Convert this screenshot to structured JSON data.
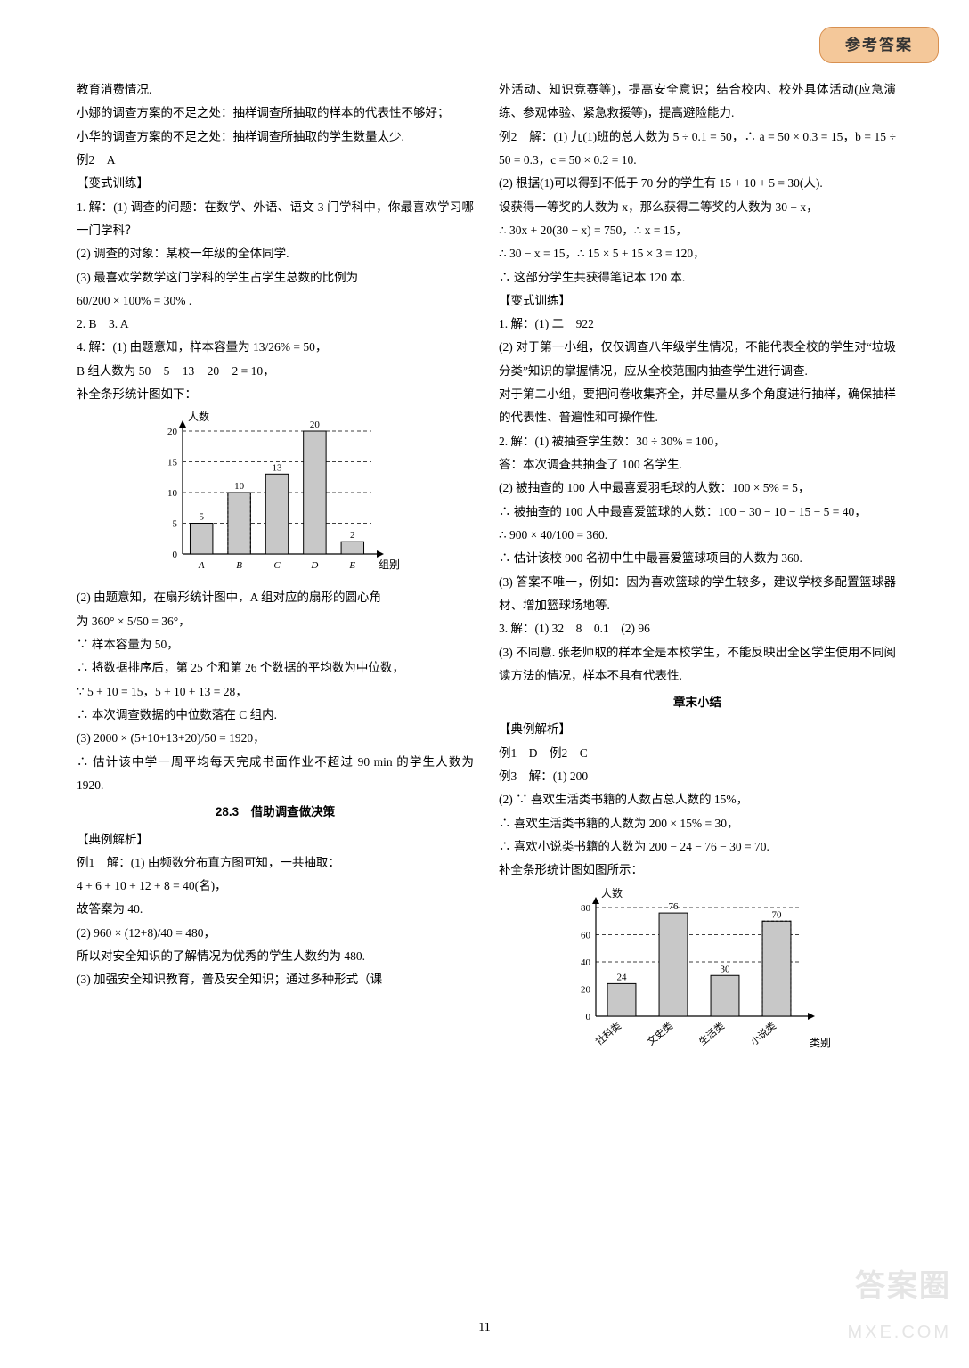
{
  "header": {
    "badge": "参考答案"
  },
  "pageNumber": "11",
  "watermark": {
    "line1": "答案圈",
    "line2": "MXE.COM"
  },
  "left": {
    "l01": "教育消费情况.",
    "l02": "小娜的调查方案的不足之处：抽样调查所抽取的样本的代表性不够好；",
    "l03": "小华的调查方案的不足之处：抽样调查所抽取的学生数量太少.",
    "l04": "例2　A",
    "l05": "【变式训练】",
    "l06": "1. 解：(1) 调查的问题：在数学、外语、语文 3 门学科中，你最喜欢学习哪一门学科？",
    "l07": "(2) 调查的对象：某校一年级的全体同学.",
    "l08": "(3) 最喜欢学数学这门学科的学生占学生总数的比例为",
    "l09": "60/200 × 100% = 30% .",
    "l10": "2. B　3. A",
    "l11": "4. 解：(1) 由题意知，样本容量为 13/26% = 50，",
    "l12": "B 组人数为 50 − 5 − 13 − 20 − 2 = 10，",
    "l13": "补全条形统计图如下：",
    "l14": "(2) 由题意知，在扇形统计图中，A 组对应的扇形的圆心角",
    "l15": "为 360° × 5/50 = 36°，",
    "l16": "∵ 样本容量为 50，",
    "l17": "∴ 将数据排序后，第 25 个和第 26 个数据的平均数为中位数，",
    "l18": "∵ 5 + 10 = 15，5 + 10 + 13 = 28，",
    "l19": "∴ 本次调查数据的中位数落在 C 组内.",
    "l20": "(3) 2000 × (5+10+13+20)/50 = 1920，",
    "l21": "∴ 估计该中学一周平均每天完成书面作业不超过 90 min 的学生人数为 1920.",
    "heading": "28.3　借助调查做决策",
    "l22": "【典例解析】",
    "l23": "例1　解：(1) 由频数分布直方图可知，一共抽取：",
    "l24": "4 + 6 + 10 + 12 + 8 = 40(名)，",
    "l25": "故答案为 40.",
    "l26": "(2) 960 × (12+8)/40 = 480，",
    "l27": "所以对安全知识的了解情况为优秀的学生人数约为 480.",
    "l28": "(3) 加强安全知识教育，普及安全知识；通过多种形式（课"
  },
  "right": {
    "r01": "外活动、知识竞赛等)，提高安全意识；结合校内、校外具体活动(应急演练、参观体验、紧急救援等)，提高避险能力.",
    "r02": "例2　解：(1) 九(1)班的总人数为 5 ÷ 0.1 = 50，∴ a = 50 × 0.3 = 15，b = 15 ÷ 50 = 0.3，c = 50 × 0.2 = 10.",
    "r03": "(2) 根据(1)可以得到不低于 70 分的学生有 15 + 10 + 5 = 30(人).",
    "r04": "设获得一等奖的人数为 x，那么获得二等奖的人数为 30 − x，",
    "r05": "∴ 30x + 20(30 − x) = 750，∴ x = 15，",
    "r06": "∴ 30 − x = 15，∴ 15 × 5 + 15 × 3 = 120，",
    "r07": "∴ 这部分学生共获得笔记本 120 本.",
    "r08": "【变式训练】",
    "r09": "1. 解：(1) 二　922",
    "r10": "(2) 对于第一小组，仅仅调查八年级学生情况，不能代表全校的学生对“垃圾分类”知识的掌握情况，应从全校范围内抽查学生进行调查.",
    "r11": "对于第二小组，要把问卷收集齐全，并尽量从多个角度进行抽样，确保抽样的代表性、普遍性和可操作性.",
    "r12": "2. 解：(1) 被抽查学生数：30 ÷ 30% = 100，",
    "r13": "答：本次调查共抽查了 100 名学生.",
    "r14": "(2) 被抽查的 100 人中最喜爱羽毛球的人数：100 × 5% = 5，",
    "r15": "∴ 被抽查的 100 人中最喜爱篮球的人数：100 − 30 − 10 − 15 − 5 = 40，",
    "r16": "∴ 900 × 40/100 = 360.",
    "r17": "∴ 估计该校 900 名初中生中最喜爱篮球项目的人数为 360.",
    "r18": "(3) 答案不唯一，例如：因为喜欢篮球的学生较多，建议学校多配置篮球器材、增加篮球场地等.",
    "r19": "3. 解：(1) 32　8　0.1　(2) 96",
    "r20": "(3) 不同意. 张老师取的样本全是本校学生，不能反映出全区学生使用不同阅读方法的情况，样本不具有代表性.",
    "heading": "章末小结",
    "r21": "【典例解析】",
    "r22": "例1　D　例2　C",
    "r23": "例3　解：(1) 200",
    "r24": "(2) ∵ 喜欢生活类书籍的人数占总人数的 15%，",
    "r25": "∴ 喜欢生活类书籍的人数为 200 × 15% = 30，",
    "r26": "∴ 喜欢小说类书籍的人数为 200 − 24 − 76 − 30 = 70.",
    "r27": "补全条形统计图如图所示："
  },
  "chart1": {
    "type": "bar",
    "categories": [
      "A",
      "B",
      "C",
      "D",
      "E"
    ],
    "values": [
      5,
      10,
      13,
      20,
      2
    ],
    "highlighted_index": 1,
    "ylabel": "人数",
    "xlabel": "组别",
    "ylim": [
      0,
      20
    ],
    "ytick_step": 5,
    "bar_color": "#c8c8c8",
    "bar_edge": "#000000",
    "background": "#ffffff",
    "grid_color": "#000000",
    "tick_fontsize": 11,
    "label_fontsize": 12,
    "bar_width": 0.6
  },
  "chart2": {
    "type": "bar",
    "categories": [
      "社科类",
      "文史类",
      "生活类",
      "小说类"
    ],
    "values": [
      24,
      76,
      30,
      70
    ],
    "highlighted_index": 3,
    "ylabel": "人数",
    "xlabel": "类别",
    "ylim": [
      0,
      80
    ],
    "ytick_step": 20,
    "bar_color": "#c8c8c8",
    "bar_edge": "#000000",
    "background": "#ffffff",
    "grid_color": "#000000",
    "tick_fontsize": 11,
    "label_fontsize": 12,
    "bar_width": 0.55
  }
}
